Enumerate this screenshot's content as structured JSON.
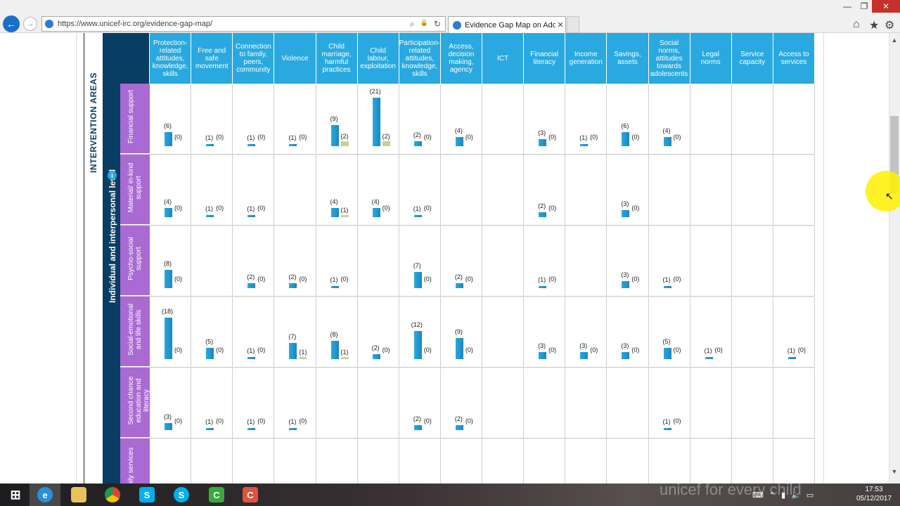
{
  "browser": {
    "url": "https://www.unicef-irc.org/evidence-gap-map/",
    "tab_title": "Evidence Gap Map on Adol...",
    "tab_close": "✕",
    "back_glyph": "←",
    "forward_glyph": "→",
    "window_min": "—",
    "window_max": "❐",
    "window_close": "✕",
    "home_glyph": "⌂",
    "star_glyph": "★",
    "gear_glyph": "⚙",
    "search_glyph": "⌕",
    "lock_glyph": "🔒",
    "refresh_glyph": "↻"
  },
  "map": {
    "side_label": "INTERVENTION AREAS",
    "level_label": "Individual and interpersonal level",
    "info_glyph": "i",
    "columns": [
      "Protection-related attitudes, knowledge, skills",
      "Free and safe movement",
      "Connection to family, peers, community",
      "Violence",
      "Child marriage, harmful practices",
      "Child labour, exploitation",
      "Participation-related attitudes, knowledge, skills",
      "Access, decision making, agency",
      "ICT",
      "Financial literacy",
      "Income generation",
      "Savings, assets",
      "Social norms, attitudes towards adolescents",
      "Legal norms",
      "Service capacity",
      "Access to services"
    ],
    "rows": [
      {
        "label": "Financial support",
        "cells": [
          [
            6,
            0
          ],
          [
            1,
            0
          ],
          [
            1,
            0
          ],
          [
            1,
            0
          ],
          [
            9,
            2
          ],
          [
            21,
            2
          ],
          [
            2,
            0
          ],
          [
            4,
            0
          ],
          null,
          [
            3,
            0
          ],
          [
            1,
            0
          ],
          [
            6,
            0
          ],
          [
            4,
            0
          ],
          null,
          null,
          null
        ]
      },
      {
        "label": "Material/ in-kind support",
        "cells": [
          [
            4,
            0
          ],
          [
            1,
            0
          ],
          [
            1,
            0
          ],
          null,
          [
            4,
            1
          ],
          [
            4,
            0
          ],
          [
            1,
            0
          ],
          null,
          null,
          [
            2,
            0
          ],
          null,
          [
            3,
            0
          ],
          null,
          null,
          null,
          null
        ]
      },
      {
        "label": "Psycho-social support",
        "cells": [
          [
            8,
            0
          ],
          null,
          [
            2,
            0
          ],
          [
            2,
            0
          ],
          [
            1,
            0
          ],
          null,
          [
            7,
            0
          ],
          [
            2,
            0
          ],
          null,
          [
            1,
            0
          ],
          null,
          [
            3,
            0
          ],
          [
            1,
            0
          ],
          null,
          null,
          null
        ]
      },
      {
        "label": "Social-emotional and life skills",
        "cells": [
          [
            18,
            0
          ],
          [
            5,
            0
          ],
          [
            1,
            0
          ],
          [
            7,
            1
          ],
          [
            8,
            1
          ],
          [
            2,
            0
          ],
          [
            12,
            0
          ],
          [
            9,
            0
          ],
          null,
          [
            3,
            0
          ],
          [
            3,
            0
          ],
          [
            3,
            0
          ],
          [
            5,
            0
          ],
          [
            1,
            0
          ],
          null,
          [
            1,
            0
          ]
        ]
      },
      {
        "label": "Second chance education and literacy",
        "cells": [
          [
            3,
            0
          ],
          [
            1,
            0
          ],
          [
            1,
            0
          ],
          [
            1,
            0
          ],
          null,
          null,
          [
            2,
            0
          ],
          [
            2,
            0
          ],
          null,
          null,
          null,
          null,
          [
            1,
            0
          ],
          null,
          null,
          null
        ]
      },
      {
        "label": "Family services",
        "cells": [
          null,
          null,
          null,
          null,
          null,
          null,
          null,
          null,
          null,
          null,
          null,
          null,
          null,
          null,
          null,
          null
        ]
      }
    ],
    "colors": {
      "primary_bar": "#29a9e0",
      "secondary_bar": "#c7d48e",
      "row_label_bg": "#a96ad3",
      "header_bg": "#29a9e0",
      "navy": "#0a3d64"
    }
  },
  "overlay": {
    "watermark": "unicef  for every child"
  },
  "taskbar": {
    "apps": [
      "windows-start",
      "internet-explorer",
      "file-explorer",
      "chrome",
      "skype",
      "skype-business",
      "camtasia-green",
      "camtasia-red"
    ],
    "time": "17:53",
    "date": "05/12/2017"
  }
}
